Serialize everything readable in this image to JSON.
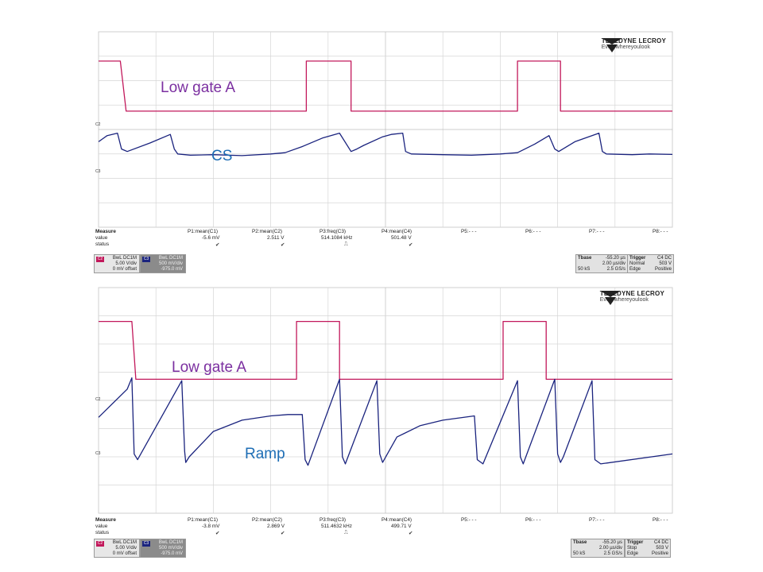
{
  "colors": {
    "gate": "#c2185b",
    "cs": "#1a237e",
    "overlay_gate": "#7b2fa0",
    "overlay_cs": "#1e6eb5",
    "grid": "#d6d6d6"
  },
  "logo": {
    "brand": "TELEDYNE LECROY",
    "tagline": "Everywhereyoulook"
  },
  "top": {
    "overlay_gate": "Low gate A",
    "overlay_cs": "CS",
    "trace_labels": {
      "c2": "C2",
      "c3": "C3"
    },
    "measure": {
      "row_labels": [
        "Measure",
        "value",
        "status"
      ],
      "params": [
        {
          "name": "P1:mean(C1)",
          "value": "-5.6 mV",
          "status": "✔"
        },
        {
          "name": "P2:mean(C2)",
          "value": "2.511 V",
          "status": "✔"
        },
        {
          "name": "P3:freq(C3)",
          "value": "514.1084 kHz",
          "status": "⎍"
        },
        {
          "name": "P4:mean(C4)",
          "value": "501.48 V",
          "status": "✔"
        },
        {
          "name": "P5:- - -",
          "value": "",
          "status": ""
        },
        {
          "name": "P6:- - -",
          "value": "",
          "status": ""
        },
        {
          "name": "P7:- - -",
          "value": "",
          "status": ""
        },
        {
          "name": "P8:- - -",
          "value": "",
          "status": ""
        }
      ]
    },
    "ch2": {
      "tag": "C2",
      "coupling": "BwL DC1M",
      "vdiv": "5.00 V/div",
      "offset": "0 mV offset"
    },
    "ch3": {
      "tag": "C3",
      "coupling": "BwL DC1M",
      "vdiv": "500 mV/div",
      "offset": "-975.0 mV"
    },
    "tbase": {
      "label": "Tbase",
      "value": "-55.20 µs",
      "div": "2.00 µs/div",
      "samples": "50 kS",
      "rate": "2.5 GS/s"
    },
    "trigger": {
      "label": "Trigger",
      "src": "C4 DC",
      "mode": "Normal",
      "level": "503 V",
      "type": "Edge",
      "slope": "Positive"
    }
  },
  "bottom": {
    "overlay_gate": "Low gate A",
    "overlay_ramp": "Ramp",
    "trace_labels": {
      "c2": "C2",
      "c3": "C3"
    },
    "measure": {
      "row_labels": [
        "Measure",
        "value",
        "status"
      ],
      "params": [
        {
          "name": "P1:mean(C1)",
          "value": "-3.8 mV",
          "status": "✔"
        },
        {
          "name": "P2:mean(C2)",
          "value": "2.869 V",
          "status": "✔"
        },
        {
          "name": "P3:freq(C3)",
          "value": "511.4632 kHz",
          "status": "⎍"
        },
        {
          "name": "P4:mean(C4)",
          "value": "499.71 V",
          "status": "✔"
        },
        {
          "name": "P5:- - -",
          "value": "",
          "status": ""
        },
        {
          "name": "P6:- - -",
          "value": "",
          "status": ""
        },
        {
          "name": "P7:- - -",
          "value": "",
          "status": ""
        },
        {
          "name": "P8:- - -",
          "value": "",
          "status": ""
        }
      ]
    },
    "ch2": {
      "tag": "C2",
      "coupling": "BwL DC1M",
      "vdiv": "5.00 V/div",
      "offset": "0 mV offset"
    },
    "ch3": {
      "tag": "C3",
      "coupling": "BwL DC1M",
      "vdiv": "500 mV/div",
      "offset": "-975.0 mV"
    },
    "tbase": {
      "label": "Tbase",
      "value": "-55.20 µs",
      "div": "2.00 µs/div",
      "samples": "50 kS",
      "rate": "2.5 GS/s"
    },
    "trigger": {
      "label": "Trigger",
      "src": "C4 DC",
      "mode": "Stop",
      "level": "503 V",
      "type": "Edge",
      "slope": "Positive"
    }
  },
  "chart_data": [
    {
      "type": "line",
      "xlim": [
        0,
        10
      ],
      "ylim": [
        0,
        8
      ],
      "grid": true,
      "series": [
        {
          "name": "Low gate A",
          "x": [
            0,
            0.38,
            0.38,
            0.48,
            0.48,
            3.62,
            3.62,
            4.4,
            4.4,
            7.3,
            7.3,
            8.05,
            8.05,
            10
          ],
          "y": [
            6.8,
            6.8,
            6.8,
            4.75,
            4.75,
            4.75,
            6.8,
            6.8,
            4.75,
            4.75,
            6.8,
            6.8,
            4.75,
            4.75
          ]
        },
        {
          "name": "CS",
          "x": [
            0,
            0.15,
            0.33,
            0.4,
            0.45,
            0.5,
            0.9,
            1.25,
            1.32,
            1.38,
            1.6,
            2.0,
            2.5,
            3.0,
            3.25,
            3.55,
            3.9,
            4.2,
            4.4,
            4.5,
            4.62,
            4.95,
            5.1,
            5.3,
            5.35,
            5.45,
            6.0,
            6.5,
            7.0,
            7.3,
            7.6,
            7.85,
            7.95,
            8.02,
            8.3,
            8.72,
            8.78,
            8.85,
            9.3,
            9.6,
            10
          ],
          "y": [
            3.5,
            3.75,
            3.85,
            3.2,
            3.15,
            3.1,
            3.45,
            3.8,
            3.2,
            3.0,
            2.95,
            2.97,
            2.93,
            3.0,
            3.05,
            3.3,
            3.65,
            3.85,
            3.1,
            3.2,
            3.35,
            3.7,
            3.8,
            3.85,
            3.1,
            3.0,
            2.97,
            2.95,
            3.0,
            3.05,
            3.4,
            3.75,
            3.2,
            3.1,
            3.5,
            3.85,
            3.1,
            3.0,
            2.97,
            3.0,
            2.98
          ]
        }
      ]
    },
    {
      "type": "line",
      "xlim": [
        0,
        10
      ],
      "ylim": [
        0,
        8
      ],
      "grid": true,
      "series": [
        {
          "name": "Low gate A",
          "x": [
            0,
            0.58,
            0.58,
            0.65,
            0.65,
            3.45,
            3.45,
            4.2,
            4.2,
            7.05,
            7.05,
            7.8,
            7.8,
            10
          ],
          "y": [
            6.8,
            6.8,
            6.8,
            4.75,
            4.75,
            4.75,
            6.8,
            6.8,
            4.75,
            4.75,
            6.8,
            6.8,
            4.75,
            4.75
          ]
        },
        {
          "name": "Ramp",
          "x": [
            0,
            0.5,
            0.58,
            0.62,
            0.68,
            1.45,
            1.5,
            1.52,
            1.58,
            2.0,
            2.5,
            3.0,
            3.3,
            3.55,
            3.6,
            3.65,
            4.2,
            4.25,
            4.3,
            4.85,
            4.9,
            4.95,
            5.2,
            5.6,
            6.0,
            6.55,
            6.6,
            6.7,
            7.3,
            7.35,
            7.4,
            7.95,
            8.0,
            8.05,
            8.1,
            8.6,
            8.65,
            8.75,
            10
          ],
          "y": [
            3.4,
            4.4,
            4.8,
            2.1,
            1.9,
            4.7,
            2.2,
            1.8,
            2.0,
            2.9,
            3.3,
            3.45,
            3.5,
            3.5,
            1.9,
            1.7,
            4.75,
            2.0,
            1.75,
            4.7,
            2.1,
            1.8,
            2.7,
            3.1,
            3.3,
            3.45,
            1.9,
            1.75,
            4.7,
            2.0,
            1.75,
            4.75,
            2.1,
            1.8,
            2.0,
            4.7,
            1.9,
            1.75,
            2.1
          ]
        }
      ]
    }
  ]
}
